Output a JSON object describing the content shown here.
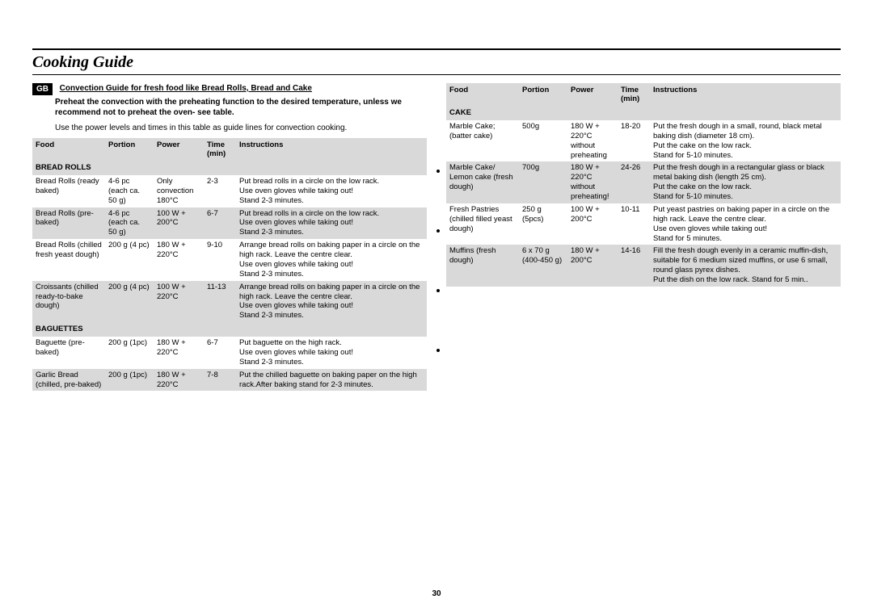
{
  "page_title": "Cooking Guide",
  "page_number": "30",
  "badge": "GB",
  "intro": {
    "heading": "Convection Guide for fresh food like Bread Rolls, Bread and Cake",
    "sub": "Preheat the convection with the preheating function to the desired temperature, unless we recommend not to preheat the oven- see table.",
    "note": "Use the power levels and times in this table as guide lines for convection cooking."
  },
  "headers": {
    "food": "Food",
    "portion": "Portion",
    "power": "Power",
    "time": "Time (min)",
    "instructions": "Instructions"
  },
  "left": {
    "sections": [
      {
        "title": "BREAD ROLLS",
        "rows": [
          {
            "alt": false,
            "food": "Bread Rolls (ready baked)",
            "portion": "4-6 pc (each ca. 50 g)",
            "power": "Only convection 180°C",
            "time": "2-3",
            "inst": "Put bread rolls in a circle on the low rack.\nUse oven gloves while taking out!\nStand 2-3 minutes."
          },
          {
            "alt": true,
            "food": "Bread Rolls (pre-baked)",
            "portion": "4-6 pc (each ca. 50 g)",
            "power": "100 W + 200°C",
            "time": "6-7",
            "inst": "Put bread rolls in a circle on the low rack.\nUse oven gloves while taking out!\nStand 2-3 minutes."
          },
          {
            "alt": false,
            "food": "Bread Rolls (chilled fresh yeast dough)",
            "portion": "200 g (4 pc)",
            "power": "180 W + 220°C",
            "time": "9-10",
            "inst": "Arrange bread rolls on baking paper in a circle on the high rack. Leave the centre clear.\nUse oven gloves while taking out!\nStand 2-3 minutes."
          },
          {
            "alt": true,
            "food": "Croissants (chilled ready-to-bake dough)",
            "portion": "200 g (4 pc)",
            "power": "100 W + 220°C",
            "time": "11-13",
            "inst": "Arrange bread rolls on baking paper in a circle on the high rack. Leave the centre clear.\nUse oven gloves while taking out!\nStand 2-3 minutes."
          }
        ]
      },
      {
        "title": "BAGUETTES",
        "rows": [
          {
            "alt": false,
            "food": "Baguette (pre-baked)",
            "portion": "200 g (1pc)",
            "power": "180 W + 220°C",
            "time": "6-7",
            "inst": "Put baguette on the high rack.\nUse oven gloves while taking out!\nStand 2-3 minutes."
          },
          {
            "alt": true,
            "food": "Garlic Bread (chilled, pre-baked)",
            "portion": "200 g (1pc)",
            "power": "180 W + 220°C",
            "time": "7-8",
            "inst": "Put the chilled baguette on baking  paper on the high rack.After baking stand for 2-3 minutes."
          }
        ]
      }
    ]
  },
  "right": {
    "sections": [
      {
        "title": "CAKE",
        "rows": [
          {
            "alt": false,
            "food": "Marble Cake; (batter cake)",
            "portion": "500g",
            "power": "180 W + 220°C without preheating",
            "time": "18-20",
            "inst": "Put the fresh dough in a small, round, black metal baking dish (diameter 18 cm).\nPut the cake on the low rack.\nStand for 5-10 minutes."
          },
          {
            "alt": true,
            "food": "Marble Cake/ Lemon cake (fresh dough)",
            "portion": "700g",
            "power": "180 W + 220°C without preheating!",
            "time": "24-26",
            "inst": "Put the fresh dough in a rectangular glass or black metal baking dish (length 25 cm).\nPut the cake on the low rack.\nStand for 5-10 minutes."
          },
          {
            "alt": false,
            "food": "Fresh Pastries (chilled filled yeast dough)",
            "portion": "250 g (5pcs)",
            "power": "100 W + 200°C",
            "time": "10-11",
            "inst": "Put yeast pastries on baking paper in a circle on the high rack. Leave the centre clear.\nUse oven gloves while taking out!\nStand for 5 minutes."
          },
          {
            "alt": true,
            "food": "Muffins (fresh dough)",
            "portion": "6 x 70 g (400-450 g)",
            "power": "180 W + 200°C",
            "time": "14-16",
            "inst": "Fill the fresh dough evenly in a ceramic muffin-dish, suitable for 6 medium sized muffins, or use 6 small, round glass pyrex dishes.\nPut the dish on the low rack. Stand for 5 min.."
          }
        ]
      }
    ]
  }
}
